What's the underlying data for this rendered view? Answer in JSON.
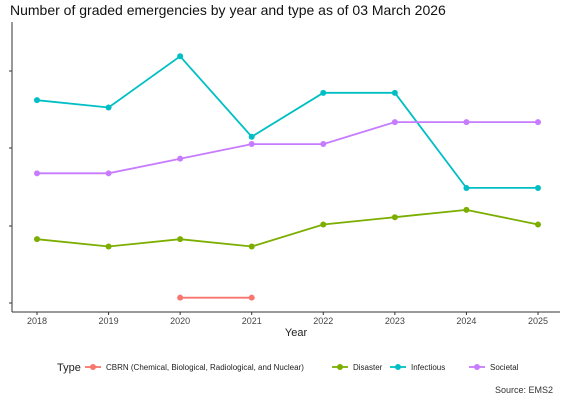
{
  "title": "Number of graded emergencies by year and type as of 03 March 2026",
  "source": "Source: EMS2",
  "legend_title": "Type",
  "chart_data": {
    "type": "line",
    "title": "Number of graded emergencies by year and type as of 03 March 2026",
    "xlabel": "Year",
    "ylabel": "",
    "x": [
      "2018",
      "2019",
      "2020",
      "2021",
      "2022",
      "2023",
      "2024",
      "2025"
    ],
    "ylim": [
      0,
      38
    ],
    "grid": false,
    "legend_position": "bottom",
    "series": [
      {
        "name": "CBRN (Chemical, Biological, Radiological, and Nuclear)",
        "color": "#F8766D",
        "values": [
          null,
          null,
          1,
          1,
          null,
          null,
          null,
          null
        ]
      },
      {
        "name": "Disaster",
        "color": "#7CAE00",
        "values": [
          9,
          8,
          9,
          8,
          11,
          12,
          13,
          11
        ]
      },
      {
        "name": "Infectious",
        "color": "#00BFC4",
        "values": [
          28,
          27,
          34,
          23,
          29,
          29,
          16,
          16
        ]
      },
      {
        "name": "Societal",
        "color": "#C77CFF",
        "values": [
          18,
          18,
          20,
          22,
          22,
          25,
          25,
          25
        ]
      }
    ]
  }
}
